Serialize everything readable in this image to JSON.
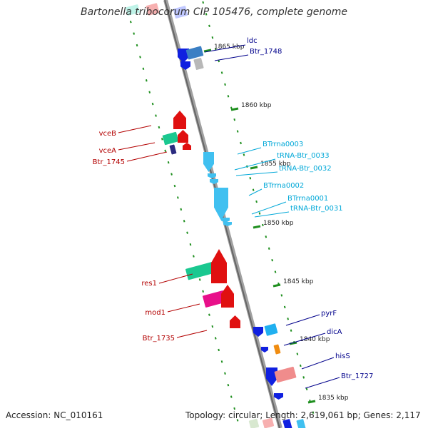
{
  "title": "Bartonella tribocorum CIP 105476, complete genome",
  "accession_label": "Accession: NC_010161",
  "topology_label": "Topology: circular; Length: 2,619,061 bp; Genes: 2,117",
  "kbp_ticks": [
    {
      "label": "1865 kbp"
    },
    {
      "label": "1860 kbp"
    },
    {
      "label": "1855 kbp"
    },
    {
      "label": "1850 kbp"
    },
    {
      "label": "1845 kbp"
    },
    {
      "label": "1840 kbp"
    },
    {
      "label": "1835 kbp"
    }
  ],
  "gene_labels": [
    {
      "text": "ldc",
      "color": "#00008b"
    },
    {
      "text": "Btr_1748",
      "color": "#00008b"
    },
    {
      "text": "vceB",
      "color": "#b30000"
    },
    {
      "text": "vceA",
      "color": "#b30000"
    },
    {
      "text": "Btr_1745",
      "color": "#b30000"
    },
    {
      "text": "BTrrna0003",
      "color": "#00a8d8"
    },
    {
      "text": "tRNA-Btr_0033",
      "color": "#00a8d8"
    },
    {
      "text": "tRNA-Btr_0032",
      "color": "#00a8d8"
    },
    {
      "text": "BTrrna0002",
      "color": "#00a8d8"
    },
    {
      "text": "BTrrna0001",
      "color": "#00a8d8"
    },
    {
      "text": "tRNA-Btr_0031",
      "color": "#00a8d8"
    },
    {
      "text": "res1",
      "color": "#b30000"
    },
    {
      "text": "mod1",
      "color": "#b30000"
    },
    {
      "text": "Btr_1735",
      "color": "#b30000"
    },
    {
      "text": "pyrF",
      "color": "#00008b"
    },
    {
      "text": "dicA",
      "color": "#00008b"
    },
    {
      "text": "hisS",
      "color": "#00008b"
    },
    {
      "text": "Btr_1727",
      "color": "#00008b"
    }
  ]
}
